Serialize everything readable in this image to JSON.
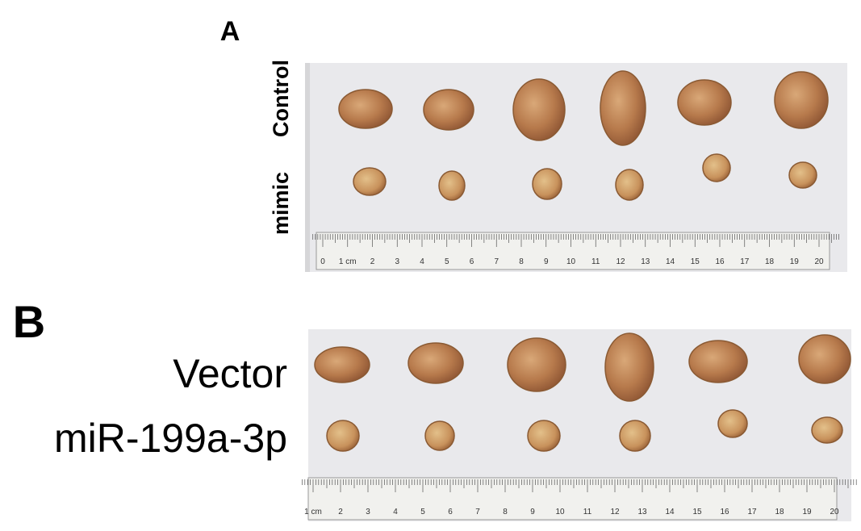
{
  "panel_a": {
    "label": "A",
    "row_labels": [
      "Control",
      "mimic"
    ],
    "ruler_labels": [
      "0",
      "1 cm",
      "2",
      "3",
      "4",
      "5",
      "6",
      "7",
      "8",
      "9",
      "10",
      "11",
      "12",
      "13",
      "14",
      "15",
      "16",
      "17",
      "18",
      "19",
      "20"
    ]
  },
  "panel_b": {
    "label": "B",
    "row_labels": [
      "Vector",
      "miR-199a-3p"
    ],
    "ruler_labels": [
      "1 cm",
      "2",
      "3",
      "4",
      "5",
      "6",
      "7",
      "8",
      "9",
      "10",
      "11",
      "12",
      "13",
      "14",
      "15",
      "16",
      "17",
      "18",
      "19",
      "20"
    ]
  }
}
